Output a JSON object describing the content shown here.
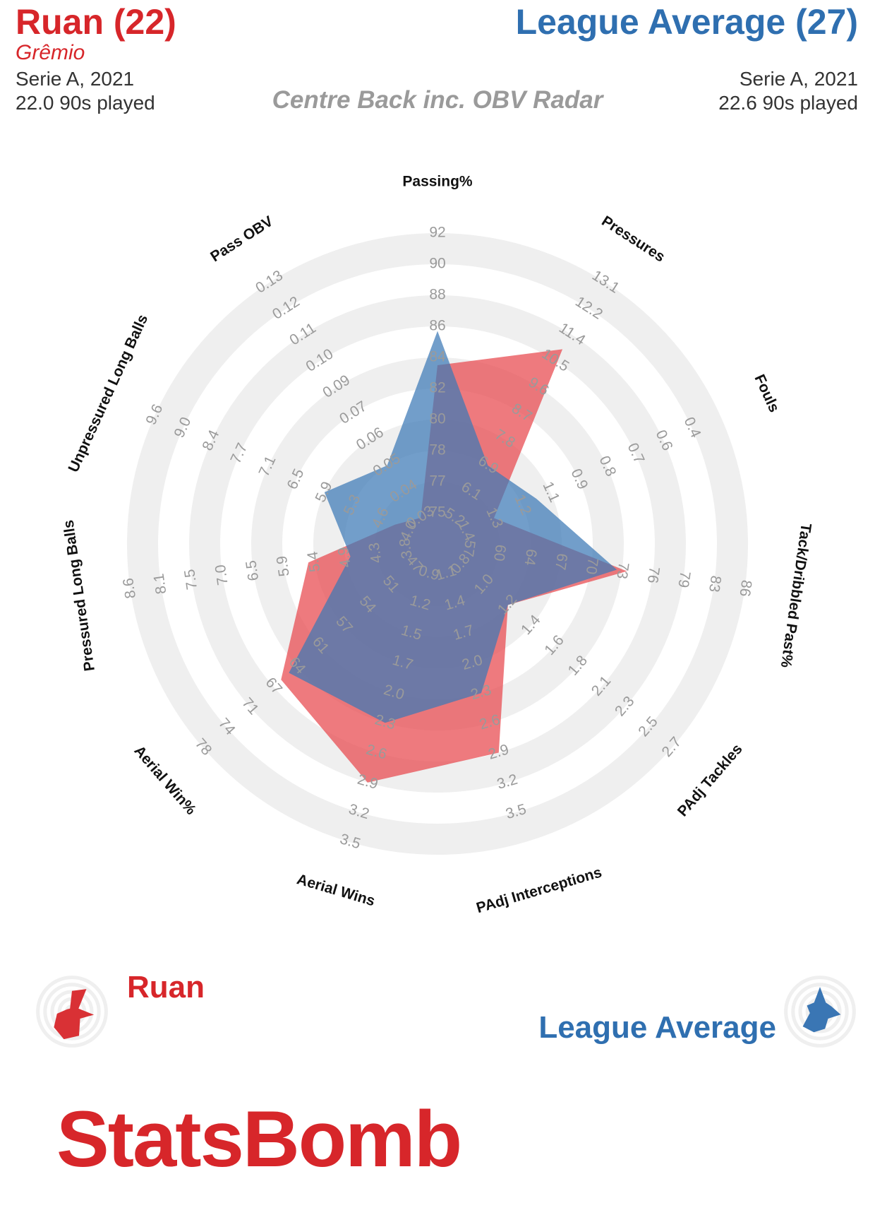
{
  "header": {
    "player": {
      "name": "Ruan (22)",
      "team": "Grêmio",
      "competition": "Serie A, 2021",
      "minutes": "22.0 90s played"
    },
    "comparison": {
      "name": "League Average (27)",
      "competition": "Serie A, 2021",
      "minutes": "22.6 90s played"
    },
    "radar_title": "Centre Back inc. OBV Radar"
  },
  "legend": {
    "player": "Ruan",
    "comparison": "League Average"
  },
  "brand": "StatsBomb",
  "colors": {
    "player": "#e8464c",
    "comparison": "#3b78b5",
    "ring": "#efefef"
  },
  "chart_data": {
    "type": "radar",
    "title": "Centre Back inc. OBV Radar",
    "axes": [
      {
        "label": "Passing%",
        "ticks": [
          "75",
          "77",
          "78",
          "80",
          "82",
          "84",
          "86",
          "88",
          "90",
          "92"
        ]
      },
      {
        "label": "Pressures",
        "ticks": [
          "5.2",
          "6.1",
          "6.9",
          "7.8",
          "8.7",
          "9.6",
          "10.5",
          "11.4",
          "12.2",
          "13.1"
        ]
      },
      {
        "label": "Fouls",
        "ticks": [
          "1.4",
          "1.3",
          "1.2",
          "1.1",
          "0.9",
          "0.8",
          "0.7",
          "0.6",
          "0.4"
        ]
      },
      {
        "label": "Tack/Dribbled Past%",
        "ticks": [
          "57",
          "60",
          "64",
          "67",
          "70",
          "73",
          "76",
          "79",
          "83",
          "86"
        ]
      },
      {
        "label": "PAdj Tackles",
        "ticks": [
          "0.8",
          "1.0",
          "1.2",
          "1.4",
          "1.6",
          "1.8",
          "2.1",
          "2.3",
          "2.5",
          "2.7"
        ]
      },
      {
        "label": "PAdj Interceptions",
        "ticks": [
          "1.1",
          "1.4",
          "1.7",
          "2.0",
          "2.3",
          "2.6",
          "2.9",
          "3.2",
          "3.5"
        ]
      },
      {
        "label": "Aerial Wins",
        "ticks": [
          "0.9",
          "1.2",
          "1.5",
          "1.7",
          "2.0",
          "2.3",
          "2.6",
          "2.9",
          "3.2",
          "3.5"
        ]
      },
      {
        "label": "Aerial Win%",
        "ticks": [
          "47",
          "51",
          "54",
          "57",
          "61",
          "64",
          "67",
          "71",
          "74",
          "78"
        ]
      },
      {
        "label": "Pressured Long Balls",
        "ticks": [
          "3.8",
          "4.3",
          "4.9",
          "5.4",
          "5.9",
          "6.5",
          "7.0",
          "7.5",
          "8.1",
          "8.6"
        ]
      },
      {
        "label": "Unpressured Long Balls",
        "ticks": [
          "4.0",
          "4.6",
          "5.3",
          "5.9",
          "6.5",
          "7.1",
          "7.7",
          "8.4",
          "9.0",
          "9.6"
        ]
      },
      {
        "label": "Pass OBV",
        "ticks": [
          "0.03",
          "0.04",
          "0.05",
          "0.06",
          "0.07",
          "0.09",
          "0.10",
          "0.11",
          "0.12",
          "0.13"
        ]
      }
    ],
    "series": [
      {
        "name": "Ruan",
        "values": {
          "Passing%": 83.5,
          "Pressures": 10.9,
          "Fouls": 1.3,
          "Tack/Dribbled Past%": 73.5,
          "PAdj Tackles": 1.2,
          "PAdj Interceptions": 2.9,
          "Aerial Wins": 2.9,
          "Aerial Win%": 66,
          "Pressured Long Balls": 5.5,
          "Unpressured Long Balls": 4.3,
          "Pass OBV": 0.03
        }
      },
      {
        "name": "League Average",
        "values": {
          "Passing%": 85.7,
          "Pressures": 6.9,
          "Fouls": 1.15,
          "Tack/Dribbled Past%": 72.5,
          "PAdj Tackles": 1.2,
          "PAdj Interceptions": 2.3,
          "Aerial Wins": 2.3,
          "Aerial Win%": 65,
          "Pressured Long Balls": 4.8,
          "Unpressured Long Balls": 5.9,
          "Pass OBV": 0.05
        }
      }
    ]
  }
}
